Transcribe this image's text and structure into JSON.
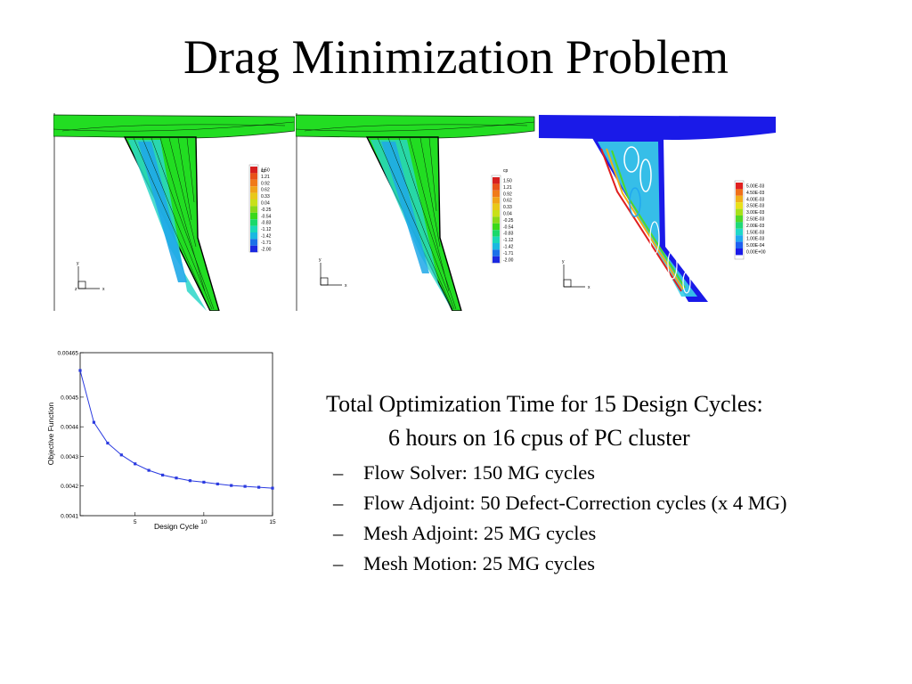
{
  "slide": {
    "title": "Drag Minimization Problem"
  },
  "panels": [
    {
      "name": "pressure-contour-panel-1",
      "colors": {
        "body": "#22dd22",
        "background": "#ffffff"
      },
      "legend": {
        "title": "cp",
        "labels": [
          "1.50",
          "1.21",
          "0.92",
          "0.62",
          "0.33",
          "0.04",
          "-0.25",
          "-0.54",
          "-0.83",
          "-1.12",
          "-1.42",
          "-1.71",
          "-2.00"
        ],
        "colors": [
          "#d61f1f",
          "#e8521a",
          "#f07a1a",
          "#f0a31a",
          "#e8c81a",
          "#c8e01a",
          "#8ad81a",
          "#3ad81a",
          "#1ad86a",
          "#1ad8b8",
          "#1ab8e0",
          "#1a70e8",
          "#1a28e0"
        ]
      },
      "axes": {
        "x": "x",
        "y": "y",
        "z": "z"
      }
    },
    {
      "name": "pressure-contour-panel-2",
      "colors": {
        "body": "#22dd22",
        "background": "#ffffff"
      },
      "legend": {
        "title": "cp",
        "labels": [
          "1.50",
          "1.21",
          "0.92",
          "0.62",
          "0.33",
          "0.04",
          "-0.25",
          "-0.54",
          "-0.83",
          "-1.12",
          "-1.42",
          "-1.71",
          "-2.00"
        ],
        "colors": [
          "#d61f1f",
          "#e8521a",
          "#f07a1a",
          "#f0a31a",
          "#e8c81a",
          "#c8e01a",
          "#8ad81a",
          "#3ad81a",
          "#1ad86a",
          "#1ad8b8",
          "#1ab8e0",
          "#1a70e8",
          "#1a28e0"
        ]
      },
      "axes": {
        "x": "x",
        "y": "y"
      }
    },
    {
      "name": "adjoint-contour-panel-3",
      "colors": {
        "body": "#1a1ae8",
        "background": "#ffffff"
      },
      "legend": {
        "title": "",
        "labels": [
          "5.00E-03",
          "4.50E-03",
          "4.00E-03",
          "3.50E-03",
          "3.00E-03",
          "2.50E-03",
          "2.00E-03",
          "1.50E-03",
          "1.00E-03",
          "5.00E-04",
          "0.00E+00"
        ],
        "colors": [
          "#e02020",
          "#f0701a",
          "#f0b01a",
          "#e8e01a",
          "#a8e01a",
          "#50d82a",
          "#20d878",
          "#20d8c8",
          "#20a8f0",
          "#2060f0",
          "#1a1ae8"
        ]
      },
      "axes": {
        "x": "x",
        "y": "y"
      }
    }
  ],
  "chart_data": {
    "type": "line",
    "title": "",
    "xlabel": "Design Cycle",
    "ylabel": "Objective Function",
    "xlim": [
      1,
      15
    ],
    "ylim": [
      0.0041,
      0.00465
    ],
    "xticks": [
      5,
      10,
      15
    ],
    "yticks": [
      "0.0041",
      "0.0042",
      "0.0043",
      "0.0044",
      "0.0045",
      "0.00465"
    ],
    "grid": false,
    "color": "#2a3ae0",
    "series": [
      {
        "name": "",
        "x": [
          1,
          2,
          3,
          4,
          5,
          6,
          7,
          8,
          9,
          10,
          11,
          12,
          13,
          14,
          15
        ],
        "y": [
          0.00459,
          0.004415,
          0.004345,
          0.004305,
          0.004275,
          0.004253,
          0.004237,
          0.004227,
          0.004218,
          0.004213,
          0.004207,
          0.004202,
          0.004199,
          0.004196,
          0.004193
        ]
      }
    ]
  },
  "summary": {
    "line1": "Total Optimization Time for 15 Design Cycles:",
    "line2": "6 hours on 16 cpus of PC cluster",
    "bullet_marker": "–",
    "bullets": [
      "Flow Solver: 150 MG cycles",
      "Flow Adjoint: 50 Defect-Correction cycles (x 4 MG)",
      "Mesh Adjoint: 25 MG cycles",
      "Mesh Motion: 25 MG cycles"
    ]
  }
}
